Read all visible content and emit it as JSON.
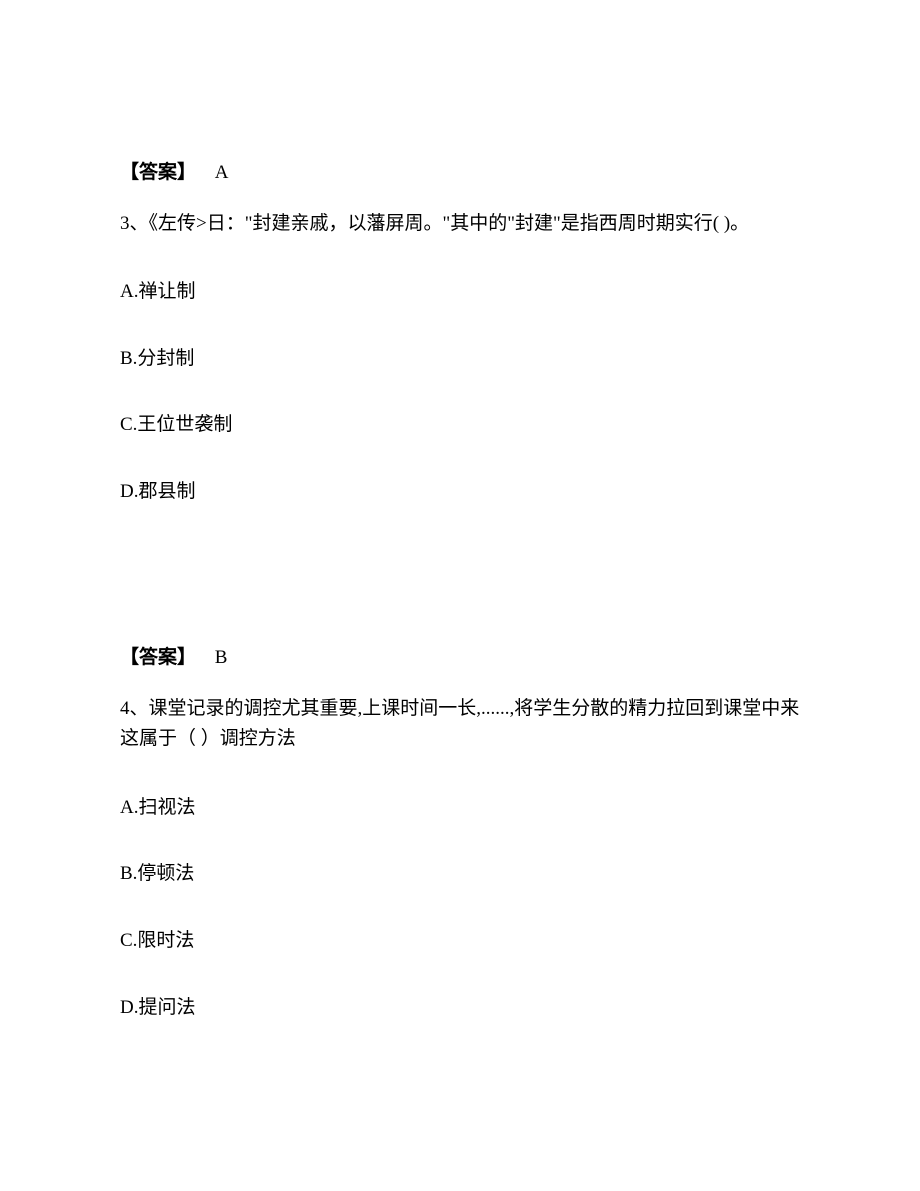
{
  "text_color": "#000000",
  "background_color": "#ffffff",
  "font_size_pt": 14,
  "q2_answer": {
    "label": "【答案】",
    "value": "A"
  },
  "q3": {
    "number": "3、",
    "stem": "《左传>日：\"封建亲戚，以藩屏周。\"其中的\"封建\"是指西周时期实行( )。",
    "options": {
      "a": "A.禅让制",
      "b": "B.分封制",
      "c": "C.王位世袭制",
      "d": "D.郡县制"
    },
    "answer": {
      "label": "【答案】",
      "value": "B"
    }
  },
  "q4": {
    "number": "4、",
    "stem": "课堂记录的调控尤其重要,上课时间一长,......,将学生分散的精力拉回到课堂中来这属于（ ）调控方法",
    "options": {
      "a": "A.扫视法",
      "b": "B.停顿法",
      "c": "C.限时法",
      "d": "D.提问法"
    }
  }
}
